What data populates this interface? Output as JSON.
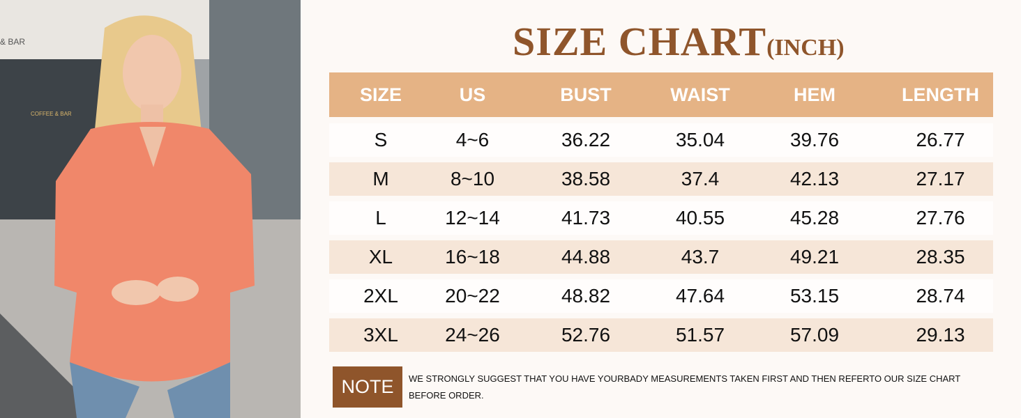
{
  "title": {
    "main": "SIZE CHART",
    "unit": "(INCH)"
  },
  "table": {
    "headers": [
      "SIZE",
      "US",
      "BUST",
      "WAIST",
      "HEM",
      "LENGTH"
    ],
    "rows": [
      [
        "S",
        "4~6",
        "36.22",
        "35.04",
        "39.76",
        "26.77"
      ],
      [
        "M",
        "8~10",
        "38.58",
        "37.4",
        "42.13",
        "27.17"
      ],
      [
        "L",
        "12~14",
        "41.73",
        "40.55",
        "45.28",
        "27.76"
      ],
      [
        "XL",
        "16~18",
        "44.88",
        "43.7",
        "49.21",
        "28.35"
      ],
      [
        "2XL",
        "20~22",
        "48.82",
        "47.64",
        "53.15",
        "28.74"
      ],
      [
        "3XL",
        "24~26",
        "52.76",
        "51.57",
        "57.09",
        "29.13"
      ]
    ]
  },
  "note": {
    "label": "NOTE",
    "text": "WE STRONGLY SUGGEST THAT YOU HAVE YOURBADY MEASUREMENTS TAKEN FIRST AND THEN REFERTO OUR SIZE CHART BEFORE ORDER."
  },
  "photo": {
    "storefront_signs": [
      "& BAR",
      "COFFEE & BAR"
    ]
  },
  "colors": {
    "accent": "#8f552b",
    "header": "#e5b385",
    "alt_row": "#f6e6d8",
    "background": "#fdf9f6",
    "top": "#f0876a"
  }
}
